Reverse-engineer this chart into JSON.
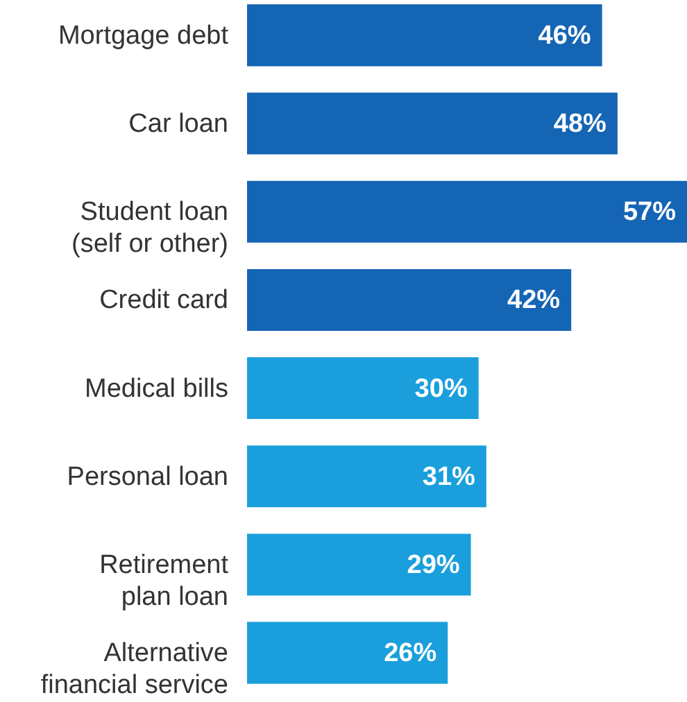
{
  "chart_data": {
    "type": "bar",
    "orientation": "horizontal",
    "categories": [
      "Mortgage debt",
      "Car loan",
      "Student loan\n(self or other)",
      "Credit card",
      "Medical bills",
      "Personal loan",
      "Retirement\nplan loan",
      "Alternative\nfinancial service"
    ],
    "values": [
      46,
      48,
      57,
      42,
      30,
      31,
      29,
      26
    ],
    "value_labels": [
      "46%",
      "48%",
      "57%",
      "42%",
      "30%",
      "31%",
      "29%",
      "26%"
    ],
    "colors": [
      "#1565b5",
      "#1565b5",
      "#1565b5",
      "#1565b5",
      "#1a9fdc",
      "#1a9fdc",
      "#1a9fdc",
      "#1a9fdc"
    ],
    "xlim": [
      0,
      57
    ]
  }
}
